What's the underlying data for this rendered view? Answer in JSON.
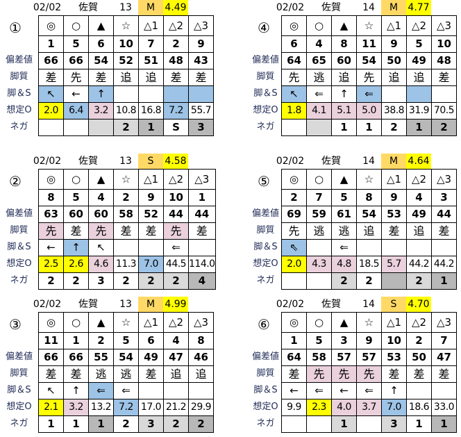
{
  "colors": {
    "b": "#9dc3e6",
    "y": "#ffff00",
    "p": "#ead1dc",
    "g": "#d9d9d9",
    "d": "#b8b8b8",
    "grade": "#ffd966"
  },
  "row_labels": [
    "偏差値",
    "脚質",
    "脚＆S",
    "想定O",
    "ネガ"
  ],
  "marks": [
    "◎",
    "○",
    "▲",
    "☆",
    "△1",
    "△2",
    "△3"
  ],
  "panels": [
    {
      "id": "①",
      "date": "02/02",
      "venue": "佐賀",
      "race": "13",
      "grade": "M",
      "index": "4.49",
      "horses": [
        "1",
        "5",
        "6",
        "10",
        "7",
        "2",
        "9"
      ],
      "deviation": [
        "66",
        "66",
        "54",
        "52",
        "51",
        "48",
        "43"
      ],
      "style": [
        [
          "差",
          ""
        ],
        [
          "先",
          ""
        ],
        [
          "差",
          ""
        ],
        [
          "追",
          ""
        ],
        [
          "追",
          ""
        ],
        [
          "差",
          ""
        ],
        [
          "差",
          ""
        ]
      ],
      "arrows": [
        [
          "↖",
          "b"
        ],
        [
          "←",
          ""
        ],
        [
          "↑",
          "b"
        ],
        [
          "",
          ""
        ],
        [
          "",
          ""
        ],
        [
          "",
          "b"
        ],
        [
          "",
          "b"
        ]
      ],
      "odds": [
        [
          "2.0",
          "y"
        ],
        [
          "6.4",
          "b"
        ],
        [
          "3.2",
          "p"
        ],
        [
          "10.8",
          ""
        ],
        [
          "16.8",
          ""
        ],
        [
          "7.2",
          "b"
        ],
        [
          "55.7",
          ""
        ]
      ],
      "nega": [
        [
          "",
          ""
        ],
        [
          "",
          ""
        ],
        [
          "",
          "g"
        ],
        [
          "2",
          "g"
        ],
        [
          "1",
          "d"
        ],
        [
          "S",
          ""
        ],
        [
          "3",
          "d"
        ]
      ]
    },
    {
      "id": "④",
      "date": "02/02",
      "venue": "佐賀",
      "race": "14",
      "grade": "M",
      "index": "4.77",
      "horses": [
        "6",
        "4",
        "8",
        "11",
        "9",
        "5",
        "10"
      ],
      "deviation": [
        "64",
        "65",
        "60",
        "54",
        "50",
        "49",
        "48"
      ],
      "style": [
        [
          "先",
          ""
        ],
        [
          "逃",
          ""
        ],
        [
          "追",
          ""
        ],
        [
          "先",
          ""
        ],
        [
          "追",
          ""
        ],
        [
          "追",
          ""
        ],
        [
          "差",
          ""
        ]
      ],
      "arrows": [
        [
          "↖",
          "b"
        ],
        [
          "⇐",
          ""
        ],
        [
          "↑",
          ""
        ],
        [
          "⇐",
          "b"
        ],
        [
          "",
          ""
        ],
        [
          "",
          "b"
        ],
        [
          "",
          ""
        ]
      ],
      "odds": [
        [
          "1.8",
          "y"
        ],
        [
          "4.1",
          "p"
        ],
        [
          "5.1",
          "p"
        ],
        [
          "5.0",
          "p"
        ],
        [
          "38.8",
          ""
        ],
        [
          "31.9",
          ""
        ],
        [
          "70.5",
          ""
        ]
      ],
      "nega": [
        [
          "",
          ""
        ],
        [
          "",
          "g"
        ],
        [
          "1",
          ""
        ],
        [
          "1",
          ""
        ],
        [
          "2",
          ""
        ],
        [
          "1",
          "d"
        ],
        [
          "2",
          "d"
        ]
      ]
    },
    {
      "id": "②",
      "date": "02/02",
      "venue": "佐賀",
      "race": "13",
      "grade": "S",
      "index": "4.58",
      "horses": [
        "8",
        "5",
        "4",
        "2",
        "9",
        "10",
        "1"
      ],
      "deviation": [
        "63",
        "60",
        "60",
        "58",
        "52",
        "44",
        "44"
      ],
      "style": [
        [
          "先",
          "p"
        ],
        [
          "差",
          ""
        ],
        [
          "先",
          "p"
        ],
        [
          "差",
          ""
        ],
        [
          "差",
          ""
        ],
        [
          "先",
          "p"
        ],
        [
          "差",
          ""
        ]
      ],
      "arrows": [
        [
          "←",
          ""
        ],
        [
          "↑",
          "b"
        ],
        [
          "↖",
          ""
        ],
        [
          "",
          ""
        ],
        [
          "",
          ""
        ],
        [
          "⇐",
          ""
        ],
        [
          "",
          ""
        ]
      ],
      "odds": [
        [
          "2.5",
          "y"
        ],
        [
          "2.6",
          "y"
        ],
        [
          "4.6",
          "p"
        ],
        [
          "11.3",
          ""
        ],
        [
          "7.0",
          "b"
        ],
        [
          "44.5",
          ""
        ],
        [
          "114.0",
          ""
        ]
      ],
      "nega": [
        [
          "2",
          ""
        ],
        [
          "2",
          ""
        ],
        [
          "3",
          ""
        ],
        [
          "2",
          ""
        ],
        [
          "2",
          "g"
        ],
        [
          "2",
          "g"
        ],
        [
          "4",
          "d"
        ]
      ]
    },
    {
      "id": "⑤",
      "date": "02/02",
      "venue": "佐賀",
      "race": "14",
      "grade": "M",
      "index": "4.64",
      "horses": [
        "2",
        "7",
        "5",
        "8",
        "9",
        "4",
        "3"
      ],
      "deviation": [
        "69",
        "59",
        "61",
        "54",
        "53",
        "49",
        "44"
      ],
      "style": [
        [
          "先",
          ""
        ],
        [
          "逃",
          ""
        ],
        [
          "逃",
          ""
        ],
        [
          "追",
          ""
        ],
        [
          "差",
          ""
        ],
        [
          "追",
          ""
        ],
        [
          "差",
          ""
        ]
      ],
      "arrows": [
        [
          "⇖",
          "b"
        ],
        [
          "",
          ""
        ],
        [
          "⇐",
          ""
        ],
        [
          "",
          ""
        ],
        [
          "",
          ""
        ],
        [
          "",
          ""
        ],
        [
          "",
          ""
        ]
      ],
      "odds": [
        [
          "2.0",
          "y"
        ],
        [
          "4.3",
          "p"
        ],
        [
          "4.8",
          "p"
        ],
        [
          "18.5",
          ""
        ],
        [
          "5.7",
          "p"
        ],
        [
          "44.2",
          ""
        ],
        [
          "44.2",
          ""
        ]
      ],
      "nega": [
        [
          "",
          ""
        ],
        [
          "",
          ""
        ],
        [
          "2",
          "g"
        ],
        [
          "2",
          ""
        ],
        [
          "",
          "d"
        ],
        [
          "2",
          "g"
        ],
        [
          "1",
          "d"
        ]
      ]
    },
    {
      "id": "③",
      "date": "02/02",
      "venue": "佐賀",
      "race": "13",
      "grade": "M",
      "index": "4.99",
      "horses": [
        "11",
        "1",
        "2",
        "5",
        "6",
        "4",
        "8"
      ],
      "deviation": [
        "66",
        "66",
        "55",
        "54",
        "49",
        "47",
        "46"
      ],
      "style": [
        [
          "差",
          ""
        ],
        [
          "差",
          ""
        ],
        [
          "逃",
          ""
        ],
        [
          "逃",
          ""
        ],
        [
          "差",
          ""
        ],
        [
          "追",
          ""
        ],
        [
          "追",
          ""
        ]
      ],
      "arrows": [
        [
          "↖",
          ""
        ],
        [
          "↑",
          ""
        ],
        [
          "⇐",
          "b"
        ],
        [
          "⇐",
          ""
        ],
        [
          "",
          ""
        ],
        [
          "",
          ""
        ],
        [
          "",
          ""
        ]
      ],
      "odds": [
        [
          "2.1",
          "y"
        ],
        [
          "3.2",
          "p"
        ],
        [
          "13.2",
          ""
        ],
        [
          "7.2",
          "b"
        ],
        [
          "17.0",
          ""
        ],
        [
          "21.2",
          ""
        ],
        [
          "29.9",
          ""
        ]
      ],
      "nega": [
        [
          "1",
          ""
        ],
        [
          "1",
          ""
        ],
        [
          "1",
          "d"
        ],
        [
          "2",
          ""
        ],
        [
          "3",
          "g"
        ],
        [
          "2",
          "g"
        ],
        [
          "2",
          "d"
        ]
      ]
    },
    {
      "id": "⑥",
      "date": "02/02",
      "venue": "佐賀",
      "race": "14",
      "grade": "S",
      "index": "4.70",
      "horses": [
        "1",
        "5",
        "3",
        "9",
        "10",
        "2",
        "7"
      ],
      "deviation": [
        "64",
        "58",
        "57",
        "57",
        "53",
        "50",
        "47"
      ],
      "style": [
        [
          "差",
          ""
        ],
        [
          "先",
          "p"
        ],
        [
          "先",
          "p"
        ],
        [
          "先",
          "p"
        ],
        [
          "差",
          ""
        ],
        [
          "差",
          ""
        ],
        [
          "差",
          ""
        ]
      ],
      "arrows": [
        [
          "←",
          ""
        ],
        [
          "⇐",
          ""
        ],
        [
          "←",
          ""
        ],
        [
          "⇐",
          ""
        ],
        [
          "↑",
          ""
        ],
        [
          "",
          ""
        ],
        [
          "",
          ""
        ]
      ],
      "odds": [
        [
          "9.9",
          ""
        ],
        [
          "2.3",
          "y"
        ],
        [
          "4.0",
          "p"
        ],
        [
          "3.7",
          "p"
        ],
        [
          "7.0",
          "b"
        ],
        [
          "18.6",
          ""
        ],
        [
          "33.0",
          ""
        ]
      ],
      "nega": [
        [
          "",
          ""
        ],
        [
          "",
          ""
        ],
        [
          "1",
          "g"
        ],
        [
          "",
          ""
        ],
        [
          "3",
          "g"
        ],
        [
          "1",
          ""
        ],
        [
          "1",
          "d"
        ]
      ]
    }
  ]
}
